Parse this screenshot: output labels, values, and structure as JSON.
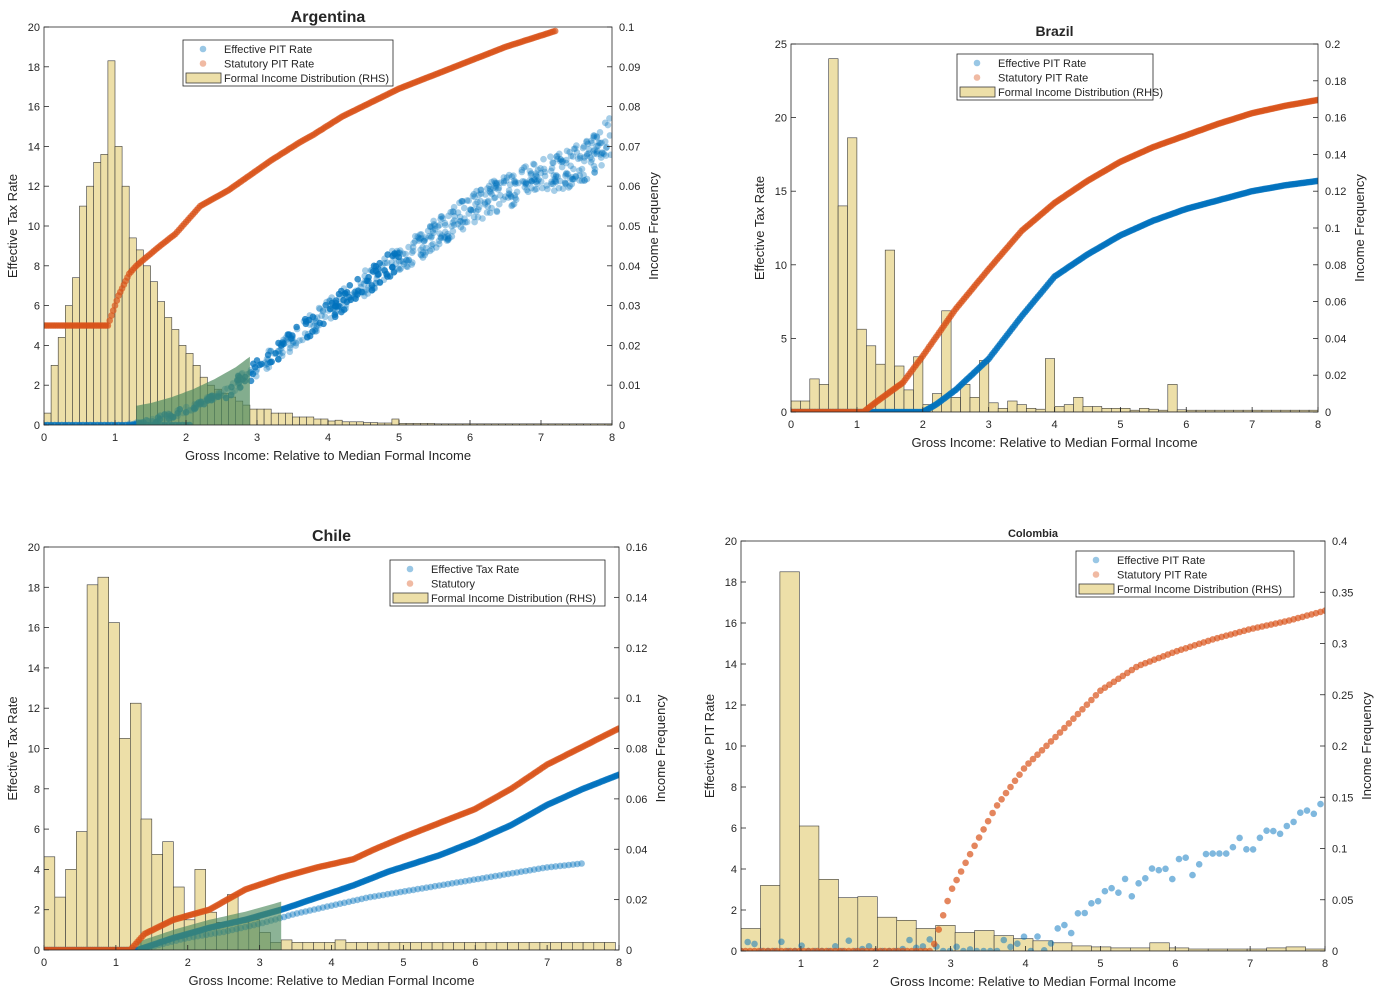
{
  "colors": {
    "effective": "#0072BD",
    "statutory": "#D95319",
    "hist_fill": "#EDDFA8",
    "hist_edge": "#3a3a3a",
    "overlap": "#4E8A5E"
  },
  "legend_labels": {
    "effective_pit": "Effective PIT Rate",
    "statutory_pit": "Statutory PIT Rate",
    "effective_tax": "Effective Tax Rate",
    "statutory": "Statutory",
    "distribution": "Formal Income Distribution (RHS)"
  },
  "chart_data": [
    {
      "id": "argentina",
      "type": "scatter",
      "title": "Argentina",
      "xlabel": "Gross Income: Relative to Median Formal Income",
      "ylabel": "Effective Tax Rate",
      "y2label": "Income Frequency",
      "xlim": [
        0,
        8
      ],
      "ylim": [
        0,
        20
      ],
      "y2lim": [
        0,
        0.1
      ],
      "xticks": [
        "0",
        "1",
        "2",
        "3",
        "4",
        "5",
        "6",
        "7",
        "8"
      ],
      "yticks": [
        "0",
        "2",
        "4",
        "6",
        "8",
        "10",
        "12",
        "14",
        "16",
        "18",
        "20"
      ],
      "y2ticks": [
        "0",
        "0.01",
        "0.02",
        "0.03",
        "0.04",
        "0.05",
        "0.06",
        "0.07",
        "0.08",
        "0.09",
        "0.1"
      ],
      "legend": [
        "Effective PIT Rate",
        "Statutory PIT Rate",
        "Formal Income Distribution (RHS)"
      ],
      "legend_position": "top-center",
      "histogram": {
        "bin_start": 0,
        "bin_width": 0.1,
        "values": [
          0.003,
          0.015,
          0.022,
          0.03,
          0.037,
          0.055,
          0.06,
          0.066,
          0.068,
          0.0915,
          0.07,
          0.06,
          0.047,
          0.044,
          0.04,
          0.036,
          0.031,
          0.027,
          0.024,
          0.02,
          0.018,
          0.015,
          0.012,
          0.01,
          0.009,
          0.008,
          0.007,
          0.006,
          0.005,
          0.004,
          0.004,
          0.004,
          0.003,
          0.003,
          0.003,
          0.002,
          0.002,
          0.002,
          0.0015,
          0.0015,
          0.001,
          0.0012,
          0.0008,
          0.0008,
          0.0008,
          0.0006,
          0.0006,
          0.0005,
          0.0005,
          0.0015,
          0.0004,
          0.0004,
          0.0004,
          0.0004,
          0.0004,
          0.0003,
          0.0003,
          0.0003,
          0.0003,
          0.0003,
          0.0003,
          0.0003,
          0.0003,
          0.0003,
          0.0003,
          0.0003,
          0.0003,
          0.0003,
          0.0003,
          0.0003,
          0.0003,
          0.0003,
          0.0003,
          0.0003,
          0.0003,
          0.0003,
          0.0003,
          0.0003,
          0.0003,
          0.0003
        ]
      },
      "statutory_points": [
        [
          0,
          5
        ],
        [
          0.3,
          5
        ],
        [
          0.6,
          5
        ],
        [
          0.9,
          5
        ],
        [
          1.05,
          6.5
        ],
        [
          1.2,
          7.6
        ],
        [
          1.3,
          8
        ],
        [
          1.6,
          8.9
        ],
        [
          1.85,
          9.6
        ],
        [
          2.2,
          11
        ],
        [
          2.6,
          11.8
        ],
        [
          2.8,
          12.3
        ],
        [
          3.2,
          13.3
        ],
        [
          3.6,
          14.2
        ],
        [
          3.8,
          14.6
        ],
        [
          4.2,
          15.5
        ],
        [
          4.6,
          16.2
        ],
        [
          5.0,
          16.9
        ],
        [
          5.5,
          17.6
        ],
        [
          6.0,
          18.3
        ],
        [
          6.5,
          19
        ],
        [
          7.2,
          19.8
        ]
      ],
      "effective_band": [
        [
          1.2,
          0
        ],
        [
          1.5,
          0.2
        ],
        [
          1.8,
          0.5
        ],
        [
          2.1,
          0.9
        ],
        [
          2.4,
          1.4
        ],
        [
          2.7,
          2
        ],
        [
          3.0,
          2.8
        ],
        [
          3.3,
          3.7
        ],
        [
          3.6,
          4.6
        ],
        [
          4.0,
          5.7
        ],
        [
          4.4,
          6.8
        ],
        [
          4.8,
          7.9
        ],
        [
          5.2,
          8.8
        ],
        [
          5.6,
          9.8
        ],
        [
          6.0,
          10.8
        ],
        [
          6.5,
          11.7
        ],
        [
          7.0,
          12.4
        ],
        [
          7.6,
          13.2
        ],
        [
          8.0,
          14.5
        ]
      ]
    },
    {
      "id": "brazil",
      "type": "scatter",
      "title": "Brazil",
      "xlabel": "Gross Income: Relative to Median Formal Income",
      "ylabel": "Effective Tax Rate",
      "y2label": "Income Frequency",
      "xlim": [
        0,
        8
      ],
      "ylim": [
        0,
        25
      ],
      "y2lim": [
        0,
        0.2
      ],
      "xticks": [
        "0",
        "1",
        "2",
        "3",
        "4",
        "5",
        "6",
        "7",
        "8"
      ],
      "yticks": [
        "0",
        "5",
        "10",
        "15",
        "20",
        "25"
      ],
      "y2ticks": [
        "0",
        "0.02",
        "0.04",
        "0.06",
        "0.08",
        "0.1",
        "0.12",
        "0.14",
        "0.16",
        "0.18",
        "0.2"
      ],
      "legend": [
        "Effective PIT Rate",
        "Statutory PIT Rate",
        "Formal Income Distribution (RHS)"
      ],
      "legend_position": "top-center",
      "histogram": {
        "bin_start": 0,
        "bin_width": 0.143,
        "values": [
          0.006,
          0.006,
          0.018,
          0.015,
          0.192,
          0.112,
          0.149,
          0.045,
          0.036,
          0.026,
          0.088,
          0.025,
          0.012,
          0.03,
          0.004,
          0.01,
          0.055,
          0.008,
          0.015,
          0.008,
          0.028,
          0.005,
          0.002,
          0.006,
          0.004,
          0.002,
          0.0015,
          0.029,
          0.003,
          0.004,
          0.008,
          0.003,
          0.003,
          0.002,
          0.002,
          0.002,
          0.001,
          0.002,
          0.0015,
          0.001,
          0.015,
          0.0012,
          0.001,
          0.001,
          0.001,
          0.001,
          0.001,
          0.001,
          0.001,
          0.001,
          0.001,
          0.001,
          0.001,
          0.001,
          0.001,
          0.001
        ]
      },
      "statutory_points": [
        [
          0,
          0
        ],
        [
          1.1,
          0
        ],
        [
          1.3,
          0.7
        ],
        [
          1.7,
          2
        ],
        [
          2.0,
          3.8
        ],
        [
          2.5,
          7
        ],
        [
          3.0,
          9.7
        ],
        [
          3.5,
          12.3
        ],
        [
          4.0,
          14.2
        ],
        [
          4.5,
          15.7
        ],
        [
          5.0,
          17
        ],
        [
          5.5,
          18
        ],
        [
          6.0,
          18.8
        ],
        [
          6.5,
          19.6
        ],
        [
          7.0,
          20.3
        ],
        [
          7.5,
          20.8
        ],
        [
          8.0,
          21.2
        ]
      ],
      "effective_points": [
        [
          0,
          0
        ],
        [
          2.0,
          0
        ],
        [
          2.2,
          0.5
        ],
        [
          2.5,
          1.5
        ],
        [
          3.0,
          3.6
        ],
        [
          3.5,
          6.5
        ],
        [
          4.0,
          9.2
        ],
        [
          4.5,
          10.7
        ],
        [
          5.0,
          12
        ],
        [
          5.5,
          13
        ],
        [
          6.0,
          13.8
        ],
        [
          6.5,
          14.4
        ],
        [
          7.0,
          15
        ],
        [
          7.5,
          15.4
        ],
        [
          8.0,
          15.7
        ]
      ]
    },
    {
      "id": "chile",
      "type": "scatter",
      "title": "Chile",
      "xlabel": "Gross Income: Relative to Median Formal Income",
      "ylabel": "Effective Tax Rate",
      "y2label": "Income Frequency",
      "xlim": [
        0,
        8
      ],
      "ylim": [
        0,
        20
      ],
      "y2lim": [
        0,
        0.16
      ],
      "xticks": [
        "0",
        "1",
        "2",
        "3",
        "4",
        "5",
        "6",
        "7",
        "8"
      ],
      "yticks": [
        "0",
        "2",
        "4",
        "6",
        "8",
        "10",
        "12",
        "14",
        "16",
        "18",
        "20"
      ],
      "y2ticks": [
        "0",
        "0.02",
        "0.04",
        "0.06",
        "0.08",
        "0.1",
        "0.12",
        "0.14",
        "0.16"
      ],
      "legend": [
        "Effective Tax Rate",
        "Statutory",
        "Formal Income Distribution (RHS)"
      ],
      "legend_position": "top-right",
      "histogram": {
        "bin_start": 0,
        "bin_width": 0.15,
        "values": [
          0.037,
          0.021,
          0.032,
          0.047,
          0.145,
          0.148,
          0.13,
          0.084,
          0.098,
          0.052,
          0.038,
          0.043,
          0.025,
          0.012,
          0.032,
          0.015,
          0.011,
          0.022,
          0.011,
          0.012,
          0.007,
          0.003,
          0.004,
          0.003,
          0.003,
          0.003,
          0.003,
          0.004,
          0.003,
          0.003,
          0.003,
          0.003,
          0.003,
          0.003,
          0.003,
          0.003,
          0.003,
          0.003,
          0.003,
          0.003,
          0.003,
          0.003,
          0.003,
          0.003,
          0.003,
          0.003,
          0.003,
          0.003,
          0.003,
          0.003,
          0.003,
          0.003,
          0.003
        ]
      },
      "statutory_points": [
        [
          0,
          0
        ],
        [
          1.2,
          0
        ],
        [
          1.4,
          0.8
        ],
        [
          1.8,
          1.5
        ],
        [
          2.3,
          2
        ],
        [
          2.8,
          3
        ],
        [
          3.3,
          3.6
        ],
        [
          3.8,
          4.1
        ],
        [
          4.3,
          4.5
        ],
        [
          4.6,
          5
        ],
        [
          5.0,
          5.6
        ],
        [
          5.5,
          6.3
        ],
        [
          6.0,
          7
        ],
        [
          6.5,
          8
        ],
        [
          7.0,
          9.2
        ],
        [
          7.5,
          10.1
        ],
        [
          8.0,
          11
        ]
      ],
      "effective_points": [
        [
          0,
          0
        ],
        [
          1.3,
          0
        ],
        [
          1.8,
          0.6
        ],
        [
          2.3,
          1.1
        ],
        [
          2.8,
          1.5
        ],
        [
          3.3,
          2
        ],
        [
          3.8,
          2.6
        ],
        [
          4.3,
          3.2
        ],
        [
          4.8,
          3.9
        ],
        [
          5.5,
          4.7
        ],
        [
          6.0,
          5.4
        ],
        [
          6.5,
          6.2
        ],
        [
          7.0,
          7.2
        ],
        [
          7.5,
          8
        ],
        [
          8.0,
          8.7
        ]
      ],
      "effective_points_2": [
        [
          1.3,
          0
        ],
        [
          2.0,
          0.6
        ],
        [
          2.5,
          0.9
        ],
        [
          3.0,
          1.3
        ],
        [
          3.5,
          1.8
        ],
        [
          4.0,
          2.2
        ],
        [
          4.5,
          2.6
        ],
        [
          5.0,
          2.9
        ],
        [
          5.5,
          3.2
        ],
        [
          6.0,
          3.5
        ],
        [
          6.5,
          3.8
        ],
        [
          7.0,
          4.1
        ],
        [
          7.5,
          4.3
        ]
      ]
    },
    {
      "id": "colombia",
      "type": "scatter",
      "title": "Colombia",
      "xlabel": "Gross Income: Relative to Median Formal Income",
      "ylabel": "Effective PIT Rate",
      "y2label": "Income Frequency",
      "xlim": [
        0.2,
        8
      ],
      "ylim": [
        0,
        20
      ],
      "y2lim": [
        0,
        0.4
      ],
      "xticks": [
        "1",
        "2",
        "3",
        "4",
        "5",
        "6",
        "7",
        "8"
      ],
      "yticks": [
        "0",
        "2",
        "4",
        "6",
        "8",
        "10",
        "12",
        "14",
        "16",
        "18",
        "20"
      ],
      "y2ticks": [
        "0",
        "0.05",
        "0.1",
        "0.15",
        "0.2",
        "0.25",
        "0.3",
        "0.35",
        "0.4"
      ],
      "legend": [
        "Effective PIT Rate",
        "Statutory PIT Rate",
        "Formal Income Distribution (RHS)"
      ],
      "legend_position": "top-right",
      "histogram": {
        "bin_start": 0.2,
        "bin_width": 0.26,
        "values": [
          0.022,
          0.064,
          0.37,
          0.122,
          0.07,
          0.052,
          0.053,
          0.033,
          0.03,
          0.022,
          0.025,
          0.018,
          0.02,
          0.015,
          0.012,
          0.01,
          0.008,
          0.005,
          0.004,
          0.003,
          0.003,
          0.008,
          0.003,
          0.002,
          0.002,
          0.002,
          0.002,
          0.003,
          0.004,
          0.002,
          0.002,
          0.002,
          0.002,
          0.002,
          0.002,
          0.002,
          0.002,
          0.002,
          0.002,
          0.002
        ]
      },
      "statutory_points": [
        [
          0.2,
          0
        ],
        [
          2.75,
          0
        ],
        [
          3.0,
          2.9
        ],
        [
          3.3,
          5
        ],
        [
          3.6,
          7
        ],
        [
          4.0,
          9
        ],
        [
          4.5,
          10.8
        ],
        [
          5.0,
          12.7
        ],
        [
          5.5,
          13.9
        ],
        [
          6.0,
          14.6
        ],
        [
          6.5,
          15.2
        ],
        [
          7.0,
          15.7
        ],
        [
          7.5,
          16.1
        ],
        [
          8.0,
          16.6
        ]
      ],
      "effective_points": [
        [
          0.2,
          0
        ],
        [
          3.9,
          0
        ],
        [
          4.0,
          0.2
        ],
        [
          4.3,
          0.6
        ],
        [
          4.7,
          1.6
        ],
        [
          5.0,
          2.4
        ],
        [
          5.5,
          3.2
        ],
        [
          6.0,
          4
        ],
        [
          6.5,
          4.5
        ],
        [
          7.0,
          5.2
        ],
        [
          7.5,
          6.1
        ],
        [
          8.0,
          6.8
        ]
      ]
    }
  ]
}
